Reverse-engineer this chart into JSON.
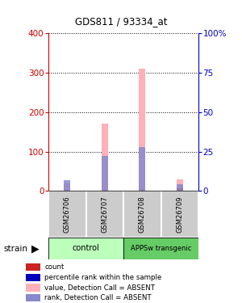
{
  "title": "GDS811 / 93334_at",
  "samples": [
    "GSM26706",
    "GSM26707",
    "GSM26708",
    "GSM26709"
  ],
  "left_ylim": [
    0,
    400
  ],
  "right_ylim": [
    0,
    100
  ],
  "left_yticks": [
    0,
    100,
    200,
    300,
    400
  ],
  "right_yticks": [
    0,
    25,
    50,
    75,
    100
  ],
  "right_yticklabels": [
    "0",
    "25",
    "50",
    "75",
    "100%"
  ],
  "pink_bar_values": [
    20,
    170,
    310,
    30
  ],
  "blue_bar_values": [
    7,
    22,
    28,
    4
  ],
  "red_bar_values": [
    3,
    2,
    2,
    6
  ],
  "pink_bar_color": "#FFB0B8",
  "blue_bar_color": "#8888CC",
  "red_bar_color": "#CC2222",
  "bar_width": 0.18,
  "sample_label_bg": "#CCCCCC",
  "group1_color": "#BBFFBB",
  "group2_color": "#66CC66",
  "left_axis_color": "#CC0000",
  "right_axis_color": "#0000BB",
  "legend_items": [
    [
      "#CC2222",
      "count"
    ],
    [
      "#0000BB",
      "percentile rank within the sample"
    ],
    [
      "#FFB0B8",
      "value, Detection Call = ABSENT"
    ],
    [
      "#8888CC",
      "rank, Detection Call = ABSENT"
    ]
  ]
}
